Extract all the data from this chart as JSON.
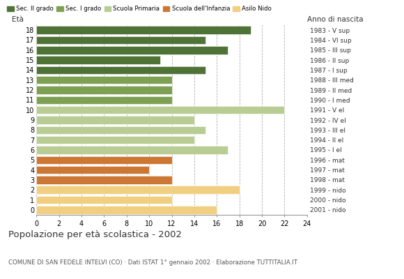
{
  "ages": [
    18,
    17,
    16,
    15,
    14,
    13,
    12,
    11,
    10,
    9,
    8,
    7,
    6,
    5,
    4,
    3,
    2,
    1,
    0
  ],
  "values": [
    19,
    15,
    17,
    11,
    15,
    12,
    12,
    12,
    22,
    14,
    15,
    14,
    17,
    12,
    10,
    12,
    18,
    12,
    16
  ],
  "right_labels": [
    "1983 - V sup",
    "1984 - VI sup",
    "1985 - III sup",
    "1986 - II sup",
    "1987 - I sup",
    "1988 - III med",
    "1989 - II med",
    "1990 - I med",
    "1991 - V el",
    "1992 - IV el",
    "1993 - III el",
    "1994 - II el",
    "1995 - I el",
    "1996 - mat",
    "1997 - mat",
    "1998 - mat",
    "1999 - nido",
    "2000 - nido",
    "2001 - nido"
  ],
  "bar_colors": [
    "#4f7336",
    "#4f7336",
    "#4f7336",
    "#4f7336",
    "#4f7336",
    "#7da052",
    "#7da052",
    "#7da052",
    "#b8cc94",
    "#b8cc94",
    "#b8cc94",
    "#b8cc94",
    "#b8cc94",
    "#cc7733",
    "#cc7733",
    "#cc7733",
    "#f0d080",
    "#f0d080",
    "#f0d080"
  ],
  "legend_labels": [
    "Sec. II grado",
    "Sec. I grado",
    "Scuola Primaria",
    "Scuola dell'Infanzia",
    "Asilo Nido"
  ],
  "legend_colors": [
    "#4f7336",
    "#7da052",
    "#b8cc94",
    "#cc7733",
    "#f0d080"
  ],
  "title": "Popolazione per età scolastica - 2002",
  "subtitle": "COMUNE DI SAN FEDELE INTELVI (CO) · Dati ISTAT 1° gennaio 2002 · Elaborazione TUTTITALIA.IT",
  "ylabel": "Età",
  "xlabel_right": "Anno di nascita",
  "xlim": [
    0,
    24
  ],
  "xticks": [
    0,
    2,
    4,
    6,
    8,
    10,
    12,
    14,
    16,
    18,
    20,
    22,
    24
  ],
  "background_color": "#ffffff"
}
